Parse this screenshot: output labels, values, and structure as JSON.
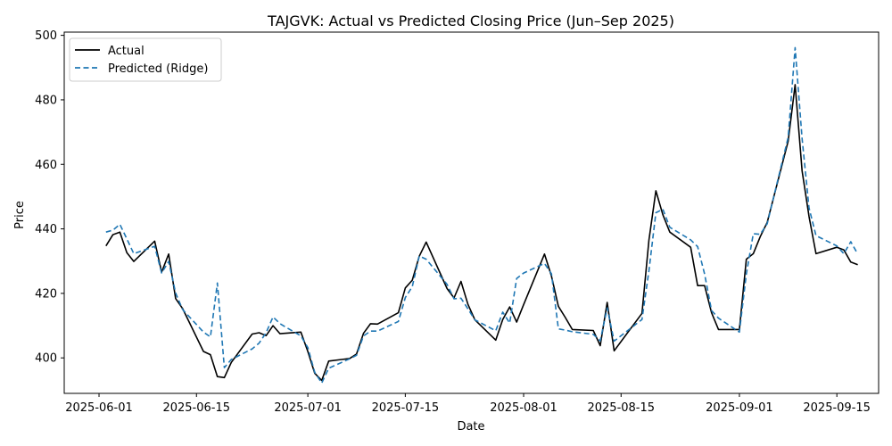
{
  "chart_data": {
    "type": "line",
    "title": "TAJGVK: Actual vs Predicted Closing Price (Jun–Sep 2025)",
    "xlabel": "Date",
    "ylabel": "Price",
    "xlim": [
      "2025-05-27",
      "2025-09-21"
    ],
    "ylim": [
      389,
      501
    ],
    "x_ticks": [
      "2025-06-01",
      "2025-06-15",
      "2025-07-01",
      "2025-07-15",
      "2025-08-01",
      "2025-08-15",
      "2025-09-01",
      "2025-09-15"
    ],
    "y_ticks": [
      400,
      420,
      440,
      460,
      480,
      500
    ],
    "grid": false,
    "legend_position": "top-left",
    "x": [
      "2025-06-02",
      "2025-06-03",
      "2025-06-04",
      "2025-06-05",
      "2025-06-06",
      "2025-06-09",
      "2025-06-10",
      "2025-06-11",
      "2025-06-12",
      "2025-06-13",
      "2025-06-16",
      "2025-06-17",
      "2025-06-18",
      "2025-06-19",
      "2025-06-20",
      "2025-06-23",
      "2025-06-24",
      "2025-06-25",
      "2025-06-26",
      "2025-06-27",
      "2025-06-30",
      "2025-07-01",
      "2025-07-02",
      "2025-07-03",
      "2025-07-04",
      "2025-07-07",
      "2025-07-08",
      "2025-07-09",
      "2025-07-10",
      "2025-07-11",
      "2025-07-14",
      "2025-07-15",
      "2025-07-16",
      "2025-07-17",
      "2025-07-18",
      "2025-07-21",
      "2025-07-22",
      "2025-07-23",
      "2025-07-24",
      "2025-07-25",
      "2025-07-28",
      "2025-07-29",
      "2025-07-30",
      "2025-07-31",
      "2025-08-01",
      "2025-08-04",
      "2025-08-05",
      "2025-08-06",
      "2025-08-07",
      "2025-08-08",
      "2025-08-11",
      "2025-08-12",
      "2025-08-13",
      "2025-08-14",
      "2025-08-18",
      "2025-08-19",
      "2025-08-20",
      "2025-08-21",
      "2025-08-22",
      "2025-08-25",
      "2025-08-26",
      "2025-08-27",
      "2025-08-28",
      "2025-08-29",
      "2025-09-01",
      "2025-09-02",
      "2025-09-03",
      "2025-09-04",
      "2025-09-05",
      "2025-09-08",
      "2025-09-09",
      "2025-09-10",
      "2025-09-11",
      "2025-09-12",
      "2025-09-15",
      "2025-09-16",
      "2025-09-17",
      "2025-09-18"
    ],
    "series": [
      {
        "name": "Actual",
        "color": "#000000",
        "dash": "solid",
        "values": [
          434.7,
          438.2,
          439.0,
          432.6,
          429.9,
          436.2,
          426.6,
          432.2,
          418.4,
          415.3,
          402.0,
          401.0,
          394.2,
          393.9,
          398.6,
          407.4,
          407.8,
          406.9,
          410.0,
          407.5,
          408.0,
          402.0,
          395.2,
          393.0,
          399.0,
          399.8,
          401.2,
          407.6,
          410.6,
          410.5,
          414.0,
          421.7,
          424.1,
          431.5,
          435.9,
          421.5,
          418.6,
          423.7,
          416.6,
          411.8,
          405.5,
          411.9,
          415.8,
          411.1,
          416.5,
          432.2,
          425.4,
          416.0,
          412.5,
          408.8,
          408.5,
          403.8,
          417.2,
          402.2,
          413.8,
          436.5,
          451.8,
          444.4,
          439.0,
          434.3,
          422.4,
          422.4,
          414.0,
          408.8,
          408.8,
          430.6,
          432.3,
          437.6,
          442.0,
          467.2,
          484.7,
          458.0,
          443.8,
          432.3,
          434.3,
          433.5,
          429.7,
          428.9
        ]
      },
      {
        "name": "Predicted (Ridge)",
        "color": "#1f77b4",
        "dash": "dashed",
        "values": [
          439.0,
          439.6,
          441.4,
          436.9,
          432.3,
          434.6,
          426.3,
          429.9,
          420.1,
          415.0,
          408.0,
          406.5,
          423.2,
          397.0,
          399.5,
          402.8,
          404.6,
          407.8,
          412.7,
          410.6,
          406.8,
          403.2,
          395.5,
          392.2,
          396.8,
          399.7,
          400.8,
          406.8,
          408.3,
          408.3,
          411.3,
          418.7,
          422.1,
          431.6,
          430.6,
          422.8,
          418.3,
          418.5,
          415.2,
          411.8,
          408.4,
          414.2,
          410.8,
          424.6,
          426.3,
          429.3,
          426.1,
          409.0,
          408.6,
          408.1,
          407.3,
          405.3,
          415.5,
          405.2,
          411.9,
          427.0,
          445.0,
          446.1,
          440.5,
          436.6,
          434.5,
          426.0,
          414.7,
          412.3,
          408.0,
          426.0,
          438.5,
          438.3,
          441.6,
          468.4,
          496.2,
          468.0,
          446.5,
          437.9,
          434.7,
          432.3,
          436.0,
          432.2
        ]
      }
    ]
  }
}
